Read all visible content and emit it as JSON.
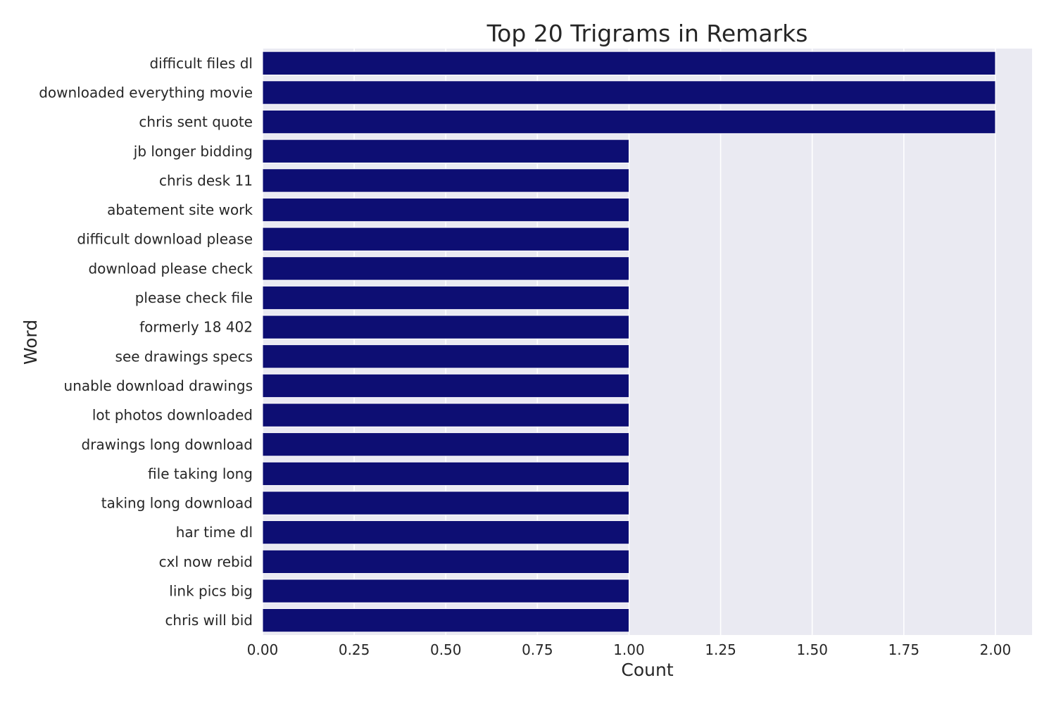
{
  "chart_data": {
    "type": "bar",
    "orientation": "horizontal",
    "title": "Top 20 Trigrams in Remarks",
    "xlabel": "Count",
    "ylabel": "Word",
    "xlim": [
      0,
      2.1
    ],
    "xticks": [
      "0.00",
      "0.25",
      "0.50",
      "0.75",
      "1.00",
      "1.25",
      "1.50",
      "1.75",
      "2.00"
    ],
    "grid": true,
    "bar_color": "#0d0e73",
    "background_color": "#eaeaf2",
    "categories": [
      "difficult files dl",
      "downloaded everything movie",
      "chris sent quote",
      "jb longer bidding",
      "chris desk 11",
      "abatement site work",
      "difficult download please",
      "download please check",
      "please check file",
      "formerly 18 402",
      "see drawings specs",
      "unable download drawings",
      "lot photos downloaded",
      "drawings long download",
      "file taking long",
      "taking long download",
      "har time dl",
      "cxl now rebid",
      "link pics big",
      "chris will bid"
    ],
    "values": [
      2,
      2,
      2,
      1,
      1,
      1,
      1,
      1,
      1,
      1,
      1,
      1,
      1,
      1,
      1,
      1,
      1,
      1,
      1,
      1
    ]
  }
}
